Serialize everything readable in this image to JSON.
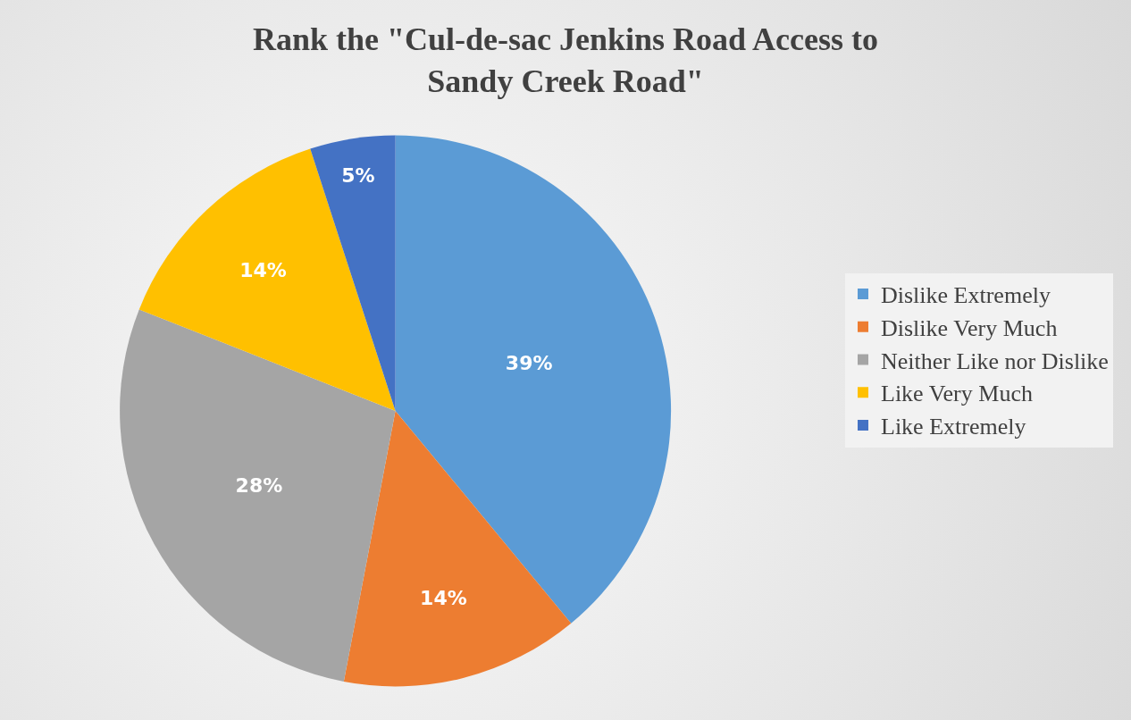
{
  "chart_data": {
    "type": "pie",
    "title": "Rank the \"Cul-de-sac Jenkins Road Access to Sandy Creek Road\"",
    "categories": [
      "Dislike Extremely",
      "Dislike Very Much",
      "Neither Like nor Dislike",
      "Like Very Much",
      "Like Extremely"
    ],
    "values": [
      39,
      14,
      28,
      14,
      5
    ],
    "value_labels": [
      "39%",
      "14%",
      "28%",
      "14%",
      "5%"
    ],
    "colors": [
      "#5b9bd5",
      "#ed7d31",
      "#a5a5a5",
      "#ffc000",
      "#4472c4"
    ],
    "legend": "right"
  }
}
